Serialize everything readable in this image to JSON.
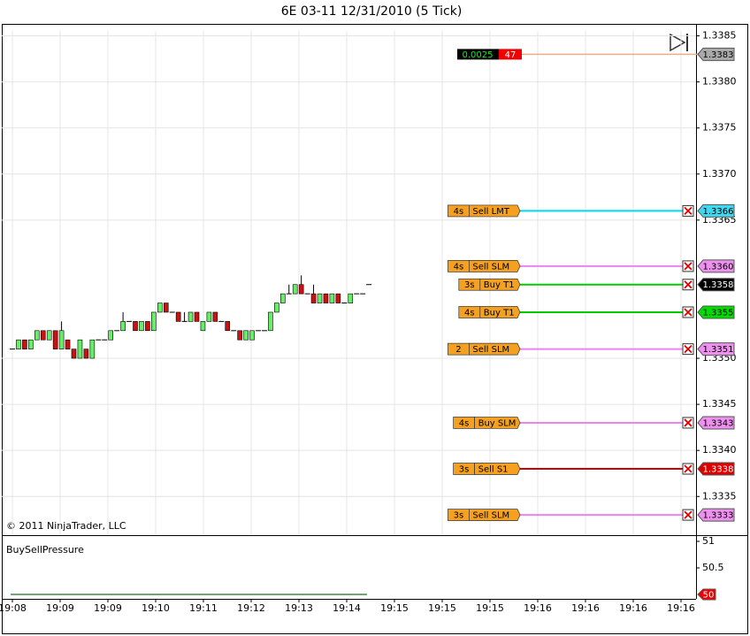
{
  "chart_data": {
    "type": "candlestick",
    "title": "6E 03-11  12/31/2010 (5 Tick)",
    "open": [
      1.3351,
      1.3351,
      1.3352,
      1.3351,
      1.3352,
      1.3353,
      1.3352,
      1.3353,
      1.3351,
      1.3352,
      1.3351,
      1.335,
      1.3351,
      1.335,
      1.3352,
      1.3352,
      1.3352,
      1.3353,
      1.3353,
      1.3354,
      1.3354,
      1.3353,
      1.3354,
      1.3353,
      1.3355,
      1.3356,
      1.3355,
      1.3355,
      1.3354,
      1.3354,
      1.3355,
      1.3353,
      1.3354,
      1.3355,
      1.3354,
      1.3354,
      1.3353,
      1.3353,
      1.3352,
      1.3352,
      1.3353,
      1.3353,
      1.3353,
      1.3355,
      1.3356,
      1.3357,
      1.3357,
      1.3358,
      1.3357,
      1.3357,
      1.3356,
      1.3357,
      1.3356,
      1.3357,
      1.3356,
      1.3356,
      1.3357,
      1.3357,
      1.3358
    ],
    "high": [
      1.3351,
      1.3352,
      1.3352,
      1.3352,
      1.3353,
      1.3353,
      1.3353,
      1.3353,
      1.3354,
      1.3352,
      1.3351,
      1.3352,
      1.3351,
      1.3352,
      1.3352,
      1.3352,
      1.3353,
      1.3353,
      1.3355,
      1.3354,
      1.3354,
      1.3354,
      1.3354,
      1.3355,
      1.3356,
      1.3356,
      1.3355,
      1.3355,
      1.3355,
      1.3355,
      1.3355,
      1.3354,
      1.3355,
      1.3355,
      1.3354,
      1.3354,
      1.3353,
      1.3353,
      1.3353,
      1.3353,
      1.3353,
      1.3353,
      1.3355,
      1.3356,
      1.3357,
      1.3358,
      1.3358,
      1.3359,
      1.3357,
      1.3358,
      1.3357,
      1.3357,
      1.3357,
      1.3357,
      1.3356,
      1.3357,
      1.3357,
      1.3357,
      1.3358
    ],
    "low": [
      1.3351,
      1.3351,
      1.3351,
      1.3351,
      1.3352,
      1.3352,
      1.3352,
      1.3351,
      1.3351,
      1.3351,
      1.335,
      1.335,
      1.335,
      1.335,
      1.3352,
      1.3352,
      1.3352,
      1.3353,
      1.3353,
      1.3354,
      1.3353,
      1.3353,
      1.3353,
      1.3353,
      1.3355,
      1.3355,
      1.3355,
      1.3354,
      1.3354,
      1.3354,
      1.3354,
      1.3353,
      1.3354,
      1.3354,
      1.3354,
      1.3353,
      1.3353,
      1.3352,
      1.3352,
      1.3352,
      1.3353,
      1.3353,
      1.3353,
      1.3355,
      1.3356,
      1.3357,
      1.3357,
      1.3357,
      1.3357,
      1.3356,
      1.3356,
      1.3356,
      1.3356,
      1.3356,
      1.3356,
      1.3356,
      1.3357,
      1.3357,
      1.3358
    ],
    "close": [
      1.3351,
      1.3352,
      1.3351,
      1.3352,
      1.3353,
      1.3352,
      1.3353,
      1.3351,
      1.3353,
      1.3351,
      1.335,
      1.3352,
      1.335,
      1.3352,
      1.3352,
      1.3352,
      1.3353,
      1.3353,
      1.3354,
      1.3354,
      1.3353,
      1.3354,
      1.3353,
      1.3355,
      1.3356,
      1.3355,
      1.3355,
      1.3354,
      1.3354,
      1.3355,
      1.3354,
      1.3354,
      1.3355,
      1.3354,
      1.3354,
      1.3353,
      1.3353,
      1.3352,
      1.3353,
      1.3353,
      1.3353,
      1.3353,
      1.3355,
      1.3356,
      1.3357,
      1.3357,
      1.3358,
      1.3357,
      1.3357,
      1.3356,
      1.3357,
      1.3356,
      1.3357,
      1.3356,
      1.3356,
      1.3357,
      1.3357,
      1.3357,
      1.3358
    ],
    "up_color": "#66ee66",
    "down_color": "#cc1111",
    "ylim": [
      1.33308,
      1.33863
    ],
    "yticks": [
      1.3385,
      {
        "value": 1.338,
        "label": "1.3380"
      },
      1.3375,
      {
        "value": 1.337,
        "label": "1.3370"
      },
      1.3365,
      {
        "value": 1.335,
        "label": "1.3350"
      },
      1.3345,
      {
        "value": 1.334,
        "label": "1.3340"
      },
      1.3335
    ],
    "x_labels": [
      "19:08",
      "19:09",
      "19:09",
      "19:10",
      "19:11",
      "19:12",
      "19:13",
      "19:14",
      "19:15",
      "19:15",
      "19:15",
      "19:16",
      "19:16",
      "19:16",
      "19:16"
    ],
    "grid": true
  },
  "last_price": {
    "price": 1.3383,
    "distance": "0.0025",
    "count": "47",
    "color": "#e8b080"
  },
  "orders": [
    {
      "qty": "4s",
      "name": "Sell LMT",
      "price": 1.3366,
      "color": "#00d8f0",
      "marker_color": "#40d8f0",
      "text_color": "#000000"
    },
    {
      "qty": "4s",
      "name": "Sell SLM",
      "price": 1.336,
      "price_label": "1.3360",
      "color": "#ee82ee",
      "marker_color": "#ee90ee",
      "text_color": "#000000"
    },
    {
      "qty": "3s",
      "name": "Buy T1",
      "price": 1.3358,
      "color": "#00cc00",
      "marker_color": "#000000",
      "text_color": "#ffffff"
    },
    {
      "qty": "4s",
      "name": "Buy T1",
      "price": 1.3355,
      "color": "#00cc00",
      "marker_color": "#00dd00",
      "text_color": "#000000"
    },
    {
      "qty": "2",
      "name": "Sell SLM",
      "price": 1.3351,
      "color": "#ee82ee",
      "marker_color": "#ee90ee",
      "text_color": "#000000"
    },
    {
      "qty": "4s",
      "name": "Buy SLM",
      "price": 1.3343,
      "color": "#ee82ee",
      "marker_color": "#ee90ee",
      "text_color": "#000000"
    },
    {
      "qty": "3s",
      "name": "Sell S1",
      "price": 1.3338,
      "color": "#cc0000",
      "marker_color": "#dd0000",
      "text_color": "#ffffff"
    },
    {
      "qty": "3s",
      "name": "Sell SLM",
      "price": 1.3333,
      "color": "#ee82ee",
      "marker_color": "#ee90ee",
      "text_color": "#000000"
    }
  ],
  "indicator": {
    "name": "BuySellPressure",
    "value": 50,
    "ylim": [
      49.917,
      51.117
    ],
    "yticks": [
      51,
      50.5
    ],
    "color": "#448844"
  },
  "copyright": "© 2011 NinjaTrader, LLC"
}
